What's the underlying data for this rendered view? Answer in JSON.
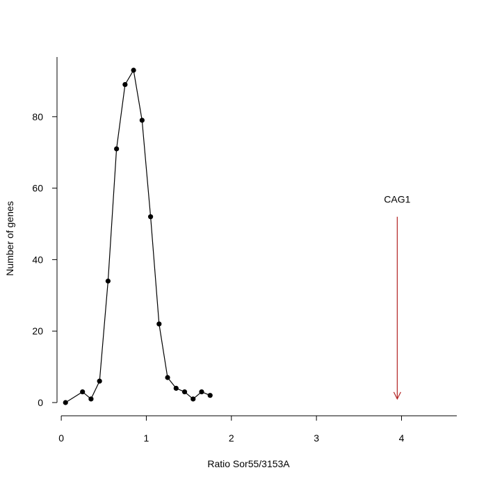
{
  "chart_data": {
    "type": "line",
    "title": "",
    "xlabel": "Ratio Sor55/3153A",
    "ylabel": "Number of genes",
    "x_ticks": [
      0,
      1,
      2,
      3,
      4
    ],
    "y_ticks": [
      0,
      20,
      40,
      60,
      80
    ],
    "xlim": [
      -0.05,
      4.65
    ],
    "ylim": [
      -3.7,
      96.7
    ],
    "grid": false,
    "legend": "none",
    "series": [
      {
        "x": [
          0.05,
          0.25,
          0.35,
          0.45,
          0.55,
          0.65,
          0.75,
          0.85,
          0.95,
          1.05,
          1.15,
          1.25,
          1.35,
          1.45,
          1.55,
          1.65,
          1.75
        ],
        "y": [
          0,
          3,
          1,
          6,
          34,
          71,
          89,
          93,
          79,
          52,
          22,
          7,
          4,
          3,
          1,
          3,
          2
        ],
        "color": "#000000"
      }
    ],
    "annotation": {
      "label": "CAG1",
      "x": 3.95,
      "y_from": 52,
      "y_to": 1,
      "color": "#b22222"
    }
  }
}
